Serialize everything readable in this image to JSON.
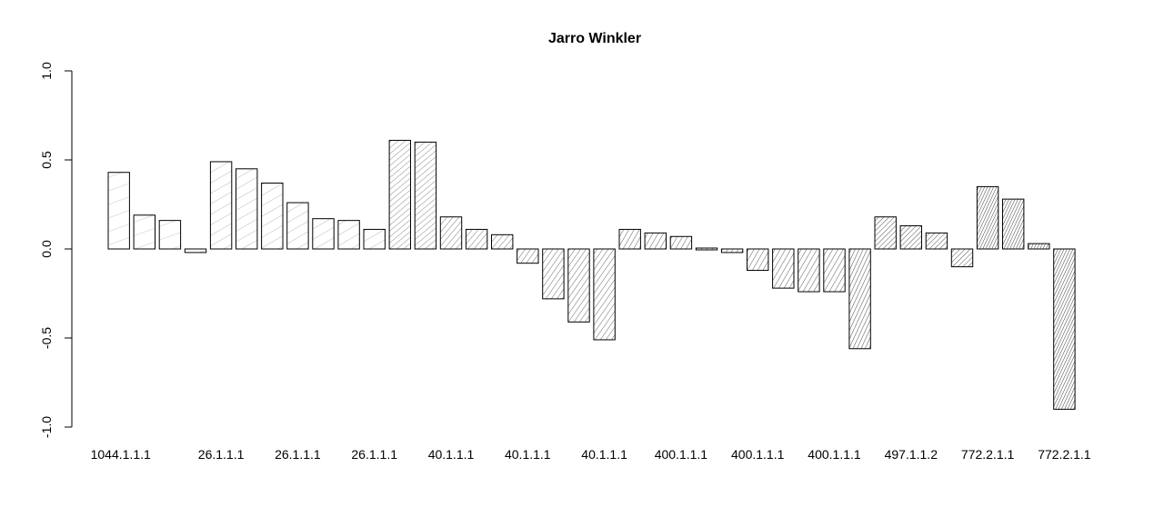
{
  "chart_data": {
    "type": "bar",
    "title": "Jarro Winkler",
    "xlabel": "",
    "ylabel": "",
    "ylim": [
      -1.0,
      1.0
    ],
    "yticks": [
      -1.0,
      -0.5,
      0.0,
      0.5,
      1.0
    ],
    "ytick_labels": [
      "-1.0",
      "-0.5",
      "0.0",
      "0.5",
      "1.0"
    ],
    "grid": false,
    "legend": "none",
    "values": [
      0.43,
      0.19,
      0.16,
      -0.02,
      0.49,
      0.45,
      0.37,
      0.26,
      0.17,
      0.16,
      0.11,
      0.61,
      0.6,
      0.18,
      0.11,
      0.08,
      -0.08,
      -0.28,
      -0.41,
      -0.51,
      0.11,
      0.09,
      0.07,
      0.01,
      -0.02,
      -0.12,
      -0.22,
      -0.24,
      -0.24,
      -0.56,
      0.18,
      0.13,
      0.09,
      -0.1,
      0.35,
      0.28,
      0.03,
      -0.9
    ],
    "categories": [
      "1044.1.1.1",
      "",
      "",
      "",
      "26.1.1.1",
      "",
      "",
      "26.1.1.1",
      "",
      "",
      "26.1.1.1",
      "",
      "",
      "40.1.1.1",
      "",
      "",
      "40.1.1.1",
      "",
      "",
      "40.1.1.1",
      "",
      "",
      "400.1.1.1",
      "",
      "",
      "400.1.1.1",
      "",
      "",
      "400.1.1.1",
      "",
      "",
      "497.1.1.2",
      "",
      "",
      "772.2.1.1",
      "",
      "",
      "772.2.1.1"
    ],
    "hatch_groups": [
      0,
      0,
      0,
      0,
      1,
      1,
      1,
      1,
      1,
      1,
      1,
      2,
      2,
      3,
      3,
      3,
      4,
      4,
      4,
      4,
      5,
      5,
      5,
      5,
      5,
      5,
      5,
      5,
      5,
      6,
      7,
      7,
      7,
      7,
      8,
      8,
      8,
      8
    ],
    "hatch_colors": [
      "#b8b8b8",
      "#a6a6a6",
      "#8a8a8a",
      "#7a7a7a",
      "#6a6a6a",
      "#5a5a5a",
      "#4a4a4a",
      "#505050",
      "#404040"
    ]
  }
}
